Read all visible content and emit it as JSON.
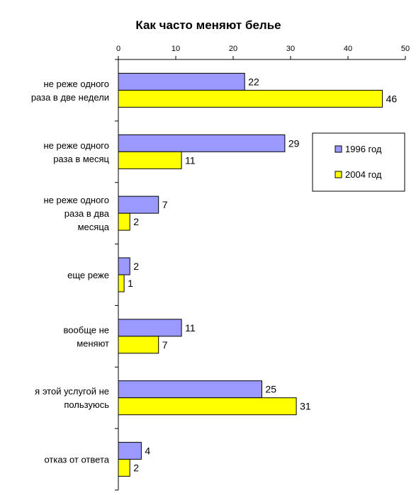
{
  "chart_data": {
    "type": "bar",
    "orientation": "horizontal",
    "title": "Как часто меняют белье",
    "categories": [
      [
        "не реже одного",
        "раза в две недели"
      ],
      [
        "не реже одного",
        "раза в месяц"
      ],
      [
        "не реже одного",
        "раза в два",
        "месяца"
      ],
      [
        "еще реже"
      ],
      [
        "вообще не",
        "меняют"
      ],
      [
        "я этой услугой не",
        "пользуюсь"
      ],
      [
        "отказ от ответа"
      ]
    ],
    "series": [
      {
        "name": "1996 год",
        "color": "#9999ff",
        "values": [
          22,
          29,
          7,
          2,
          11,
          25,
          4
        ]
      },
      {
        "name": "2004 год",
        "color": "#ffff00",
        "values": [
          46,
          11,
          2,
          1,
          7,
          31,
          2
        ]
      }
    ],
    "xlim": [
      0,
      50
    ],
    "ticks": [
      0,
      10,
      20,
      30,
      40,
      50
    ],
    "xaxis_position": "top",
    "grid": false,
    "legend_position": "right"
  }
}
